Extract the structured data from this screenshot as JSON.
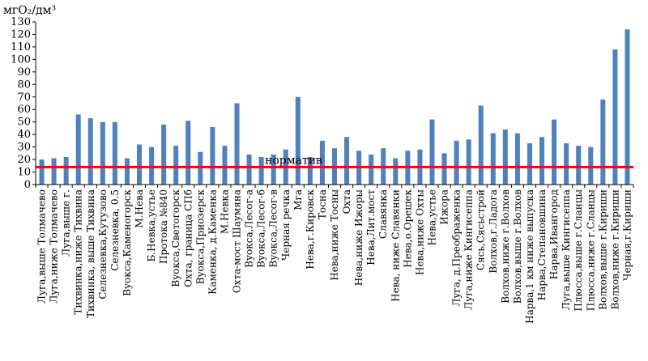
{
  "chart_data": {
    "type": "bar",
    "unit_label": "мгO₂/дм³",
    "ylim": [
      0,
      130
    ],
    "y_ticks": [
      0,
      10,
      20,
      30,
      40,
      50,
      60,
      70,
      80,
      90,
      100,
      110,
      120,
      130
    ],
    "grid": false,
    "bar_color": "#4f81bd",
    "norm": {
      "label": "норматив",
      "value": 14,
      "color": "#ff0000"
    },
    "categories": [
      "Луга,выше Толмачево",
      "Луга,ниже Толмачево",
      "Луга,выше г.",
      "Тихвинка,ниже Тихвина",
      "Тихвинка, выше Тихвина",
      "Селезневка,Кутузово",
      "Селезневка, 0.5",
      "Вуокса,Каменогорск",
      "М.Нева",
      "Б.Невка,устье",
      "Протока №840",
      "Вуокса,Светогорск",
      "Охта, граница СПб",
      "Вуокса,Приозерск",
      "Каменка, д.Каменка",
      "М.Невка",
      "Охта-мост Шаумяна",
      "Вуокса,Лесог-а",
      "Вуокса,Лесог-б",
      "Вуокса,Лесог-в",
      "Черная речка",
      "Мга",
      "Нева,г.Кировск",
      "Тосна",
      "Нева,ниже Тосны",
      "Охта",
      "Нева,ниже Ижоры",
      "Нева,Лит.мост",
      "Славянка",
      "Нева, ниже Славянки",
      "Нева,о.Орешек",
      "Нева,ниже Охты",
      "Нева,устье",
      "Ижора",
      "Луга, д.Преображенка",
      "Луга,ниже Кингисеппа",
      "Сясь,Сясьстрой",
      "Волхов,г.Ладога",
      "Волхов,ниже г.Волхов",
      "Волхов,выше г.Волхов",
      "Нарва,1 км ниже выпуска",
      "Нарва,Степановшина",
      "Нарва,Ивангород",
      "Луга,выше Кингисеппа",
      "Плюсса,выше г.Сланцы",
      "Плюсса,ниже г.Сланцы",
      "Волхов,выше г.Кириши",
      "Волхов,ниже г.Кириши",
      "Черная,г.Кириши"
    ],
    "values": [
      20,
      21,
      22,
      56,
      53,
      50,
      50,
      21,
      32,
      30,
      48,
      31,
      51,
      26,
      46,
      31,
      65,
      24,
      22,
      24,
      28,
      70,
      22,
      35,
      29,
      38,
      27,
      24,
      29,
      21,
      27,
      28,
      52,
      25,
      35,
      36,
      63,
      41,
      44,
      41,
      33,
      38,
      52,
      33,
      31,
      30,
      68,
      108,
      124
    ]
  }
}
